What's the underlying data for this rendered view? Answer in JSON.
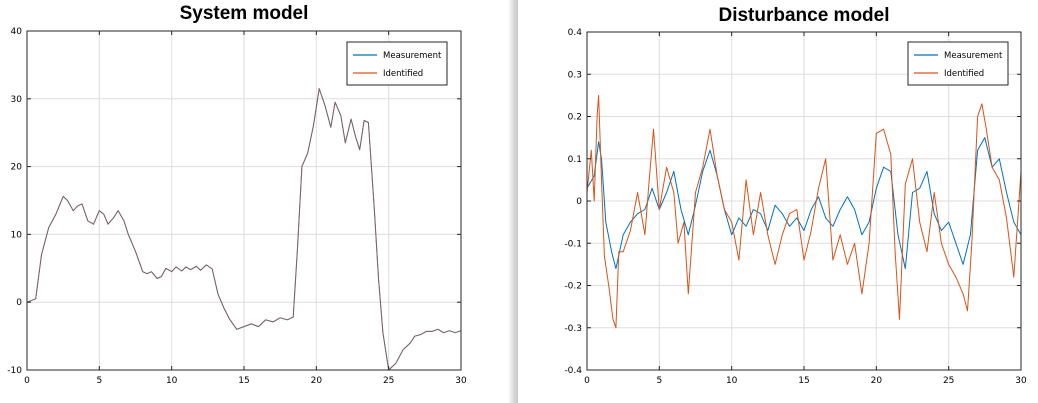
{
  "chart_data": [
    {
      "type": "line",
      "title": "System model",
      "xlim": [
        0,
        30
      ],
      "ylim": [
        -10,
        40
      ],
      "xticks": [
        0,
        5,
        10,
        15,
        20,
        25,
        30
      ],
      "yticks": [
        -10,
        0,
        10,
        20,
        30,
        40
      ],
      "grid": true,
      "legend_position": "top-right",
      "series": [
        {
          "name": "Measurement",
          "color": "#0072BD",
          "x": [
            0,
            0.6,
            1.0,
            1.5,
            2.0,
            2.5,
            2.8,
            3.2,
            3.5,
            3.8,
            4.2,
            4.6,
            5.0,
            5.3,
            5.6,
            6.0,
            6.3,
            6.7,
            7.0,
            7.5,
            8.0,
            8.3,
            8.6,
            9.0,
            9.3,
            9.6,
            10.0,
            10.3,
            10.7,
            11.0,
            11.3,
            11.7,
            12.0,
            12.4,
            12.8,
            13.2,
            13.6,
            14.0,
            14.5,
            15.0,
            15.5,
            16.0,
            16.5,
            17.0,
            17.5,
            18.0,
            18.4,
            18.7,
            19.0,
            19.4,
            19.8,
            20.2,
            20.6,
            21.0,
            21.3,
            21.7,
            22.0,
            22.4,
            22.7,
            23.0,
            23.3,
            23.6,
            24.0,
            24.3,
            24.6,
            25.0,
            25.5,
            26.0,
            26.5,
            26.8,
            27.2,
            27.6,
            28.0,
            28.4,
            28.8,
            29.2,
            29.6,
            30.0
          ],
          "y": [
            0,
            0.5,
            7,
            11,
            13,
            15.6,
            15,
            13.5,
            14.2,
            14.5,
            12,
            11.5,
            13.5,
            13,
            11.5,
            12.5,
            13.5,
            12,
            10,
            7.5,
            4.5,
            4.2,
            4.5,
            3.5,
            3.8,
            5,
            4.5,
            5.2,
            4.6,
            5.2,
            4.8,
            5.3,
            4.7,
            5.5,
            4.9,
            1.2,
            -0.8,
            -2.5,
            -4,
            -3.6,
            -3.2,
            -3.6,
            -2.6,
            -2.9,
            -2.3,
            -2.6,
            -2.2,
            8,
            20,
            22,
            26,
            31.5,
            29,
            25.8,
            29.5,
            27.5,
            23.5,
            27,
            24.5,
            22.5,
            26.8,
            26.5,
            14,
            3.5,
            -4.5,
            -10,
            -9,
            -7,
            -6,
            -5,
            -4.8,
            -4.3,
            -4.3,
            -4,
            -4.5,
            -4.2,
            -4.5,
            -4.2
          ]
        },
        {
          "name": "Identified",
          "color": "#D95319",
          "x": [
            0,
            0.6,
            1.0,
            1.5,
            2.0,
            2.5,
            2.8,
            3.2,
            3.5,
            3.8,
            4.2,
            4.6,
            5.0,
            5.3,
            5.6,
            6.0,
            6.3,
            6.7,
            7.0,
            7.5,
            8.0,
            8.3,
            8.6,
            9.0,
            9.3,
            9.6,
            10.0,
            10.3,
            10.7,
            11.0,
            11.3,
            11.7,
            12.0,
            12.4,
            12.8,
            13.2,
            13.6,
            14.0,
            14.5,
            15.0,
            15.5,
            16.0,
            16.5,
            17.0,
            17.5,
            18.0,
            18.4,
            18.7,
            19.0,
            19.4,
            19.8,
            20.2,
            20.6,
            21.0,
            21.3,
            21.7,
            22.0,
            22.4,
            22.7,
            23.0,
            23.3,
            23.6,
            24.0,
            24.3,
            24.6,
            25.0,
            25.5,
            26.0,
            26.5,
            26.8,
            27.2,
            27.6,
            28.0,
            28.4,
            28.8,
            29.2,
            29.6,
            30.0
          ],
          "y": [
            0,
            0.5,
            7,
            11,
            13,
            15.6,
            15,
            13.5,
            14.2,
            14.5,
            12,
            11.5,
            13.5,
            13,
            11.5,
            12.5,
            13.5,
            12,
            10,
            7.5,
            4.5,
            4.2,
            4.5,
            3.5,
            3.8,
            5,
            4.5,
            5.2,
            4.6,
            5.2,
            4.8,
            5.3,
            4.7,
            5.5,
            4.9,
            1.2,
            -0.8,
            -2.5,
            -4,
            -3.6,
            -3.2,
            -3.6,
            -2.6,
            -2.9,
            -2.3,
            -2.6,
            -2.2,
            8,
            20,
            22,
            26,
            31.5,
            29,
            25.8,
            29.5,
            27.5,
            23.5,
            27,
            24.5,
            22.5,
            26.8,
            26.5,
            14,
            3.5,
            -4.5,
            -10,
            -9,
            -7,
            -6,
            -5,
            -4.8,
            -4.3,
            -4.3,
            -4,
            -4.5,
            -4.2,
            -4.5,
            -4.2
          ]
        }
      ]
    },
    {
      "type": "line",
      "title": "Disturbance model",
      "xlim": [
        0,
        30
      ],
      "ylim": [
        -0.4,
        0.4
      ],
      "xticks": [
        0,
        5,
        10,
        15,
        20,
        25,
        30
      ],
      "yticks": [
        -0.4,
        -0.3,
        -0.2,
        -0.1,
        0,
        0.1,
        0.2,
        0.3,
        0.4
      ],
      "grid": true,
      "legend_position": "top-right",
      "series": [
        {
          "name": "Measurement",
          "color": "#0072BD",
          "x": [
            0,
            0.5,
            0.8,
            1.0,
            1.3,
            1.7,
            2.0,
            2.5,
            3.0,
            3.5,
            4.0,
            4.5,
            5.0,
            5.5,
            6.0,
            6.5,
            7.0,
            7.5,
            8.0,
            8.5,
            9.0,
            9.5,
            10.0,
            10.5,
            11.0,
            11.5,
            12.0,
            12.5,
            13.0,
            13.5,
            14.0,
            14.5,
            15.0,
            15.5,
            16.0,
            16.5,
            17.0,
            17.5,
            18.0,
            18.5,
            19.0,
            19.5,
            20.0,
            20.5,
            21.0,
            21.5,
            22.0,
            22.5,
            23.0,
            23.5,
            24.0,
            24.5,
            25.0,
            25.5,
            26.0,
            26.5,
            27.0,
            27.5,
            28.0,
            28.5,
            29.0,
            29.5,
            30.0
          ],
          "y": [
            0.03,
            0.06,
            0.14,
            0.1,
            -0.05,
            -0.12,
            -0.16,
            -0.08,
            -0.05,
            -0.03,
            -0.02,
            0.03,
            -0.02,
            0.02,
            0.07,
            -0.02,
            -0.08,
            -0.01,
            0.07,
            0.12,
            0.06,
            -0.02,
            -0.08,
            -0.04,
            -0.06,
            -0.02,
            -0.03,
            -0.07,
            -0.01,
            -0.03,
            -0.06,
            -0.04,
            -0.07,
            -0.02,
            0.01,
            -0.04,
            -0.06,
            -0.02,
            0.01,
            -0.02,
            -0.08,
            -0.05,
            0.03,
            0.08,
            0.07,
            -0.08,
            -0.16,
            0.02,
            0.03,
            0.07,
            -0.03,
            -0.07,
            -0.05,
            -0.1,
            -0.15,
            -0.08,
            0.12,
            0.15,
            0.08,
            0.1,
            0.02,
            -0.05,
            -0.08
          ]
        },
        {
          "name": "Identified",
          "color": "#D95319",
          "x": [
            0,
            0.3,
            0.5,
            0.7,
            0.8,
            1.0,
            1.2,
            1.5,
            1.8,
            2.0,
            2.2,
            2.5,
            3.0,
            3.5,
            4.0,
            4.3,
            4.6,
            5.0,
            5.5,
            6.0,
            6.3,
            6.7,
            7.0,
            7.5,
            8.0,
            8.5,
            9.0,
            9.5,
            10.0,
            10.5,
            11.0,
            11.5,
            12.0,
            12.5,
            13.0,
            13.5,
            14.0,
            14.5,
            15.0,
            15.5,
            16.0,
            16.5,
            17.0,
            17.5,
            18.0,
            18.5,
            19.0,
            19.5,
            20.0,
            20.5,
            21.0,
            21.3,
            21.6,
            22.0,
            22.5,
            23.0,
            23.5,
            24.0,
            24.5,
            25.0,
            25.5,
            26.0,
            26.3,
            26.6,
            27.0,
            27.3,
            27.6,
            28.0,
            28.5,
            29.0,
            29.5,
            30.0
          ],
          "y": [
            0.02,
            0.12,
            0.0,
            0.2,
            0.25,
            0.05,
            -0.13,
            -0.2,
            -0.28,
            -0.3,
            -0.12,
            -0.12,
            -0.07,
            0.02,
            -0.08,
            0.05,
            0.17,
            -0.02,
            0.08,
            0.02,
            -0.1,
            -0.05,
            -0.22,
            0.02,
            0.08,
            0.17,
            0.06,
            -0.02,
            -0.05,
            -0.14,
            0.05,
            -0.08,
            0.02,
            -0.08,
            -0.15,
            -0.08,
            -0.03,
            -0.02,
            -0.14,
            -0.07,
            0.03,
            0.1,
            -0.14,
            -0.08,
            -0.15,
            -0.1,
            -0.22,
            -0.1,
            0.16,
            0.17,
            0.11,
            -0.12,
            -0.28,
            0.04,
            0.1,
            -0.05,
            -0.12,
            0.02,
            -0.1,
            -0.15,
            -0.18,
            -0.22,
            -0.26,
            -0.1,
            0.2,
            0.23,
            0.17,
            0.08,
            0.05,
            -0.04,
            -0.18,
            0.07
          ]
        }
      ]
    }
  ]
}
